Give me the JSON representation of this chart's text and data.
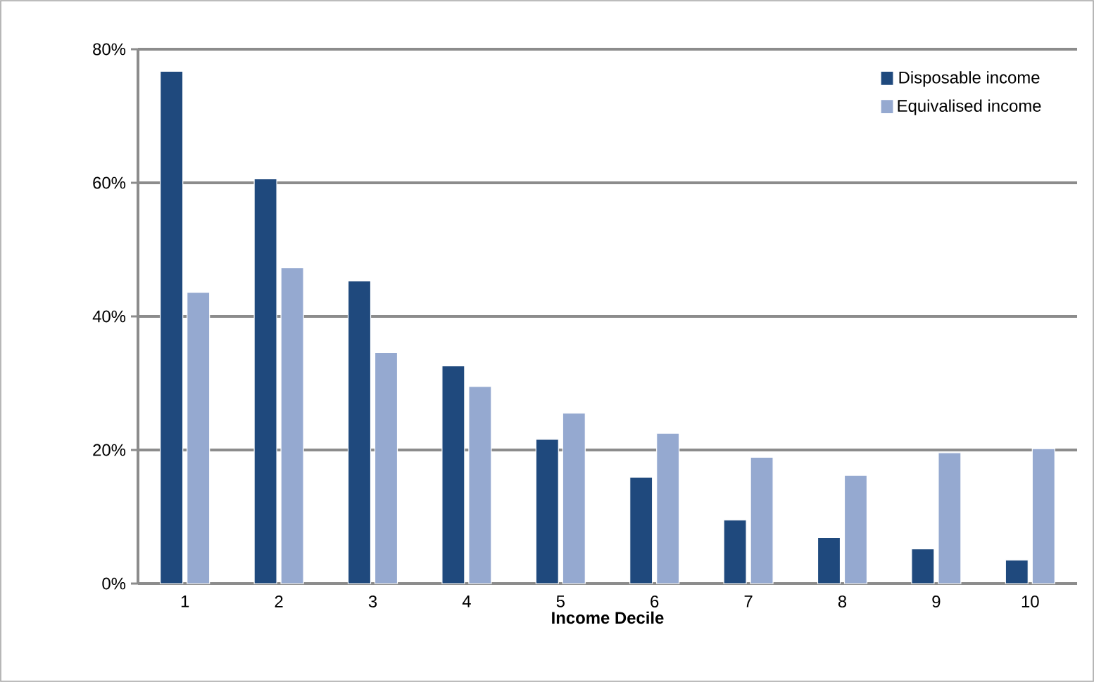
{
  "chart_data": {
    "type": "bar",
    "xlabel": "Income Decile",
    "categories": [
      "1",
      "2",
      "3",
      "4",
      "5",
      "6",
      "7",
      "8",
      "9",
      "10"
    ],
    "series": [
      {
        "name": "Disposable income",
        "color": "#1f497d",
        "values": [
          76.7,
          60.6,
          45.3,
          32.6,
          21.6,
          15.9,
          9.5,
          6.9,
          5.2,
          3.5
        ]
      },
      {
        "name": "Equivalised income",
        "color": "#95a9d0",
        "values": [
          43.6,
          47.3,
          34.6,
          29.5,
          25.5,
          22.5,
          18.9,
          16.2,
          19.6,
          20.2
        ]
      }
    ],
    "ylim": [
      0,
      80
    ],
    "yticks": [
      {
        "value": 0,
        "label": "0%"
      },
      {
        "value": 20,
        "label": "20%"
      },
      {
        "value": 40,
        "label": "40%"
      },
      {
        "value": 60,
        "label": "60%"
      },
      {
        "value": 80,
        "label": "80%"
      }
    ],
    "grid": "y",
    "legend": "top right"
  }
}
